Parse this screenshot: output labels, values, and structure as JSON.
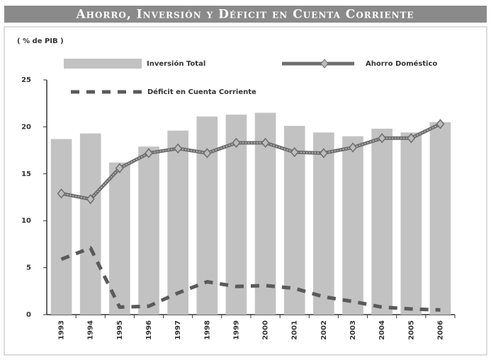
{
  "chart_data": {
    "type": "bar",
    "title": "Ahorro, Inversión y Déficit en Cuenta Corriente",
    "y_label": "( % de PIB )",
    "categories": [
      "1993",
      "1994",
      "1995",
      "1996",
      "1997",
      "1998",
      "1999",
      "2000",
      "2001",
      "2002",
      "2003",
      "2004",
      "2005",
      "2006"
    ],
    "series": [
      {
        "name": "Inversión Total",
        "type": "bar",
        "color": "#c2c2c2",
        "values": [
          18.7,
          19.3,
          16.2,
          17.9,
          19.6,
          21.1,
          21.3,
          21.5,
          20.1,
          19.4,
          19.0,
          19.8,
          19.4,
          20.5
        ]
      },
      {
        "name": "Ahorro Doméstico",
        "type": "line",
        "color": "#6e6e6e",
        "line_style": "solid",
        "marker": "diamond",
        "values": [
          12.9,
          12.3,
          15.6,
          17.2,
          17.7,
          17.2,
          18.3,
          18.3,
          17.3,
          17.2,
          17.8,
          18.8,
          18.8,
          20.3
        ]
      },
      {
        "name": "Déficit en Cuenta Corriente",
        "type": "line",
        "color": "#5a5a5a",
        "line_style": "dashed",
        "values": [
          5.9,
          7.1,
          0.8,
          0.9,
          2.3,
          3.5,
          3.0,
          3.1,
          2.8,
          1.9,
          1.4,
          0.8,
          0.6,
          0.5
        ]
      }
    ],
    "ylim": [
      0,
      25
    ],
    "yticks": [
      0,
      5,
      10,
      15,
      20,
      25
    ],
    "grid": false
  }
}
